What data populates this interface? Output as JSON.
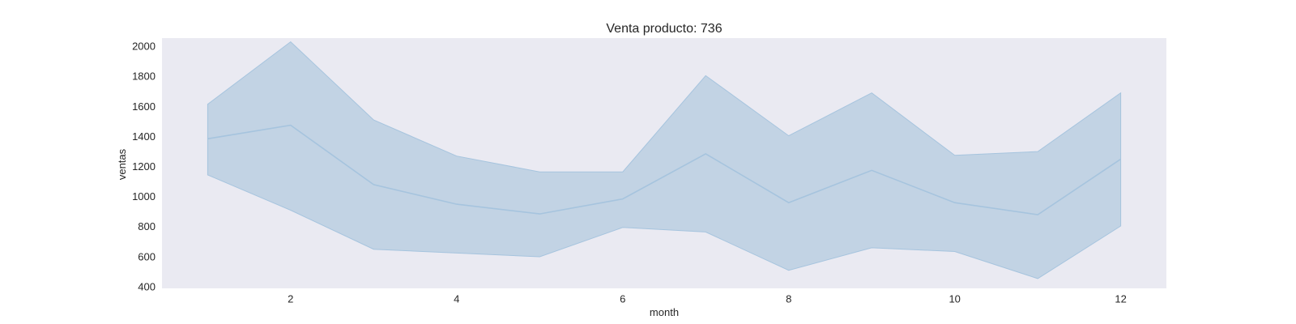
{
  "chart_data": {
    "type": "line",
    "title": "Venta producto: 736",
    "xlabel": "month",
    "ylabel": "ventas",
    "xlim": [
      0.45,
      12.55
    ],
    "ylim": [
      395,
      2060
    ],
    "xticks": [
      2,
      4,
      6,
      8,
      10,
      12
    ],
    "yticks": [
      400,
      600,
      800,
      1000,
      1200,
      1400,
      1600,
      1800,
      2000
    ],
    "grid": false,
    "legend": "none",
    "colors": {
      "plot_background": "#eaeaf2",
      "line": "#a6c4de",
      "band": "#c2d3e4"
    },
    "x": [
      1,
      2,
      3,
      4,
      5,
      6,
      7,
      8,
      9,
      10,
      11,
      12
    ],
    "series": [
      {
        "values": [
          1390,
          1480,
          1085,
          955,
          890,
          990,
          1290,
          965,
          1180,
          965,
          885,
          1255
        ],
        "lower": [
          1150,
          915,
          655,
          630,
          605,
          800,
          770,
          515,
          665,
          640,
          460,
          810
        ],
        "upper": [
          1620,
          2035,
          1515,
          1275,
          1170,
          1170,
          1810,
          1410,
          1695,
          1280,
          1305,
          1695
        ]
      }
    ]
  }
}
